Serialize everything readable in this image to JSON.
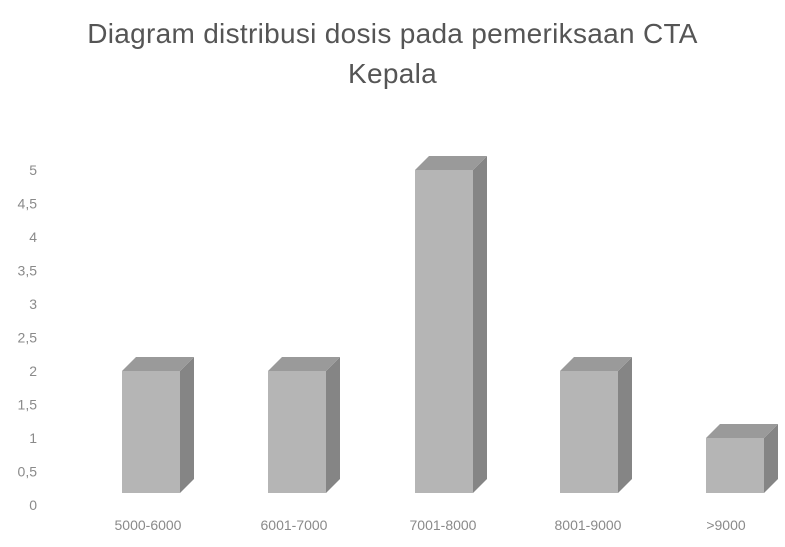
{
  "chart_data": {
    "type": "bar",
    "title_lines": [
      "Diagram distribusi dosis pada pemeriksaan CTA",
      "Kepala"
    ],
    "xlabel": "",
    "ylabel": "",
    "categories": [
      "5000-6000",
      "6001-7000",
      "7001-8000",
      "8001-9000",
      ">9000"
    ],
    "values": [
      2,
      2,
      5,
      2,
      1
    ],
    "ylim": [
      0,
      5
    ],
    "yticks": [
      "0",
      "0,5",
      "1",
      "1,5",
      "2",
      "2,5",
      "3",
      "3,5",
      "4",
      "4,5",
      "5"
    ],
    "yticks_values": [
      0,
      0.5,
      1,
      1.5,
      2,
      2.5,
      3,
      3.5,
      4,
      4.5,
      5
    ],
    "grid": false,
    "legend": "none",
    "style": "3d-column",
    "colors": {
      "bar_front": "#b5b5b5",
      "bar_side": "#858585",
      "bar_top": "#9a9a9a",
      "tick_text": "#8a8a8a",
      "title_text": "#555555"
    }
  }
}
